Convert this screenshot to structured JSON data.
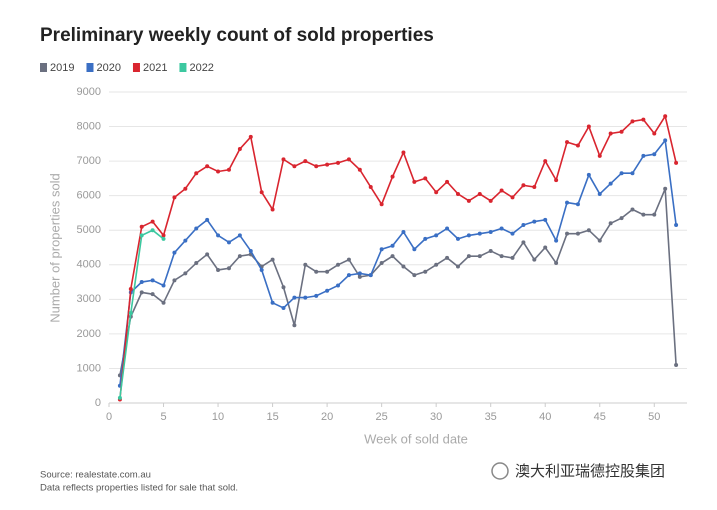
{
  "chart_data": {
    "type": "line",
    "title": "Preliminary weekly count of sold properties",
    "xlabel": "Week of sold date",
    "ylabel": "Number of properties sold",
    "x": [
      1,
      2,
      3,
      4,
      5,
      6,
      7,
      8,
      9,
      10,
      11,
      12,
      13,
      14,
      15,
      16,
      17,
      18,
      19,
      20,
      21,
      22,
      23,
      24,
      25,
      26,
      27,
      28,
      29,
      30,
      31,
      32,
      33,
      34,
      35,
      36,
      37,
      38,
      39,
      40,
      41,
      42,
      43,
      44,
      45,
      46,
      47,
      48,
      49,
      50,
      51,
      52
    ],
    "series": [
      {
        "name": "2019",
        "color": "#6b7080",
        "values": [
          800,
          2500,
          3200,
          3150,
          2900,
          3550,
          3750,
          4050,
          4300,
          3850,
          3900,
          4250,
          4300,
          3950,
          4150,
          3350,
          2250,
          4000,
          3800,
          3800,
          4000,
          4150,
          3650,
          3700,
          4050,
          4250,
          3950,
          3700,
          3800,
          4000,
          4200,
          3950,
          4250,
          4250,
          4400,
          4250,
          4200,
          4650,
          4150,
          4500,
          4050,
          4900,
          4900,
          5000,
          4700,
          5200,
          5350,
          5600,
          5450,
          5450,
          6200,
          1100
        ]
      },
      {
        "name": "2020",
        "color": "#3a6fc4",
        "values": [
          500,
          3200,
          3500,
          3550,
          3400,
          4350,
          4700,
          5050,
          5300,
          4850,
          4650,
          4850,
          4400,
          3850,
          2900,
          2750,
          3050,
          3050,
          3100,
          3250,
          3400,
          3700,
          3750,
          3700,
          4450,
          4550,
          4950,
          4450,
          4750,
          4850,
          5050,
          4750,
          4850,
          4900,
          4950,
          5050,
          4900,
          5150,
          5250,
          5300,
          4700,
          5800,
          5750,
          6600,
          6050,
          6350,
          6650,
          6650,
          7150,
          7200,
          7600,
          5150
        ]
      },
      {
        "name": "2021",
        "color": "#d9252f",
        "values": [
          100,
          3300,
          5100,
          5250,
          4850,
          5950,
          6200,
          6650,
          6850,
          6700,
          6750,
          7350,
          7700,
          6100,
          5600,
          7050,
          6850,
          7000,
          6850,
          6900,
          6950,
          7050,
          6750,
          6250,
          5750,
          6550,
          7250,
          6400,
          6500,
          6100,
          6400,
          6050,
          5850,
          6050,
          5850,
          6150,
          5950,
          6300,
          6250,
          7000,
          6450,
          7550,
          7450,
          8000,
          7150,
          7800,
          7850,
          8150,
          8200,
          7800,
          8300,
          6950
        ]
      },
      {
        "name": "2022",
        "color": "#3cc8a0",
        "values": [
          150,
          2600,
          4850,
          5000,
          4750,
          null,
          null,
          null,
          null,
          null,
          null,
          null,
          null,
          null,
          null,
          null,
          null,
          null,
          null,
          null,
          null,
          null,
          null,
          null,
          null,
          null,
          null,
          null,
          null,
          null,
          null,
          null,
          null,
          null,
          null,
          null,
          null,
          null,
          null,
          null,
          null,
          null,
          null,
          null,
          null,
          null,
          null,
          null,
          null,
          null,
          null,
          null
        ]
      }
    ],
    "xlim": [
      0,
      53
    ],
    "xticks": [
      0,
      5,
      10,
      15,
      20,
      25,
      30,
      35,
      40,
      45,
      50
    ],
    "ylim": [
      0,
      9000
    ],
    "yticks": [
      0,
      1000,
      2000,
      3000,
      4000,
      5000,
      6000,
      7000,
      8000,
      9000
    ],
    "grid": true,
    "source": "Source: realestate.com.au",
    "note": "Data reflects properties listed for sale that sold.",
    "watermark": "澳大利亚瑞德控股集团"
  }
}
